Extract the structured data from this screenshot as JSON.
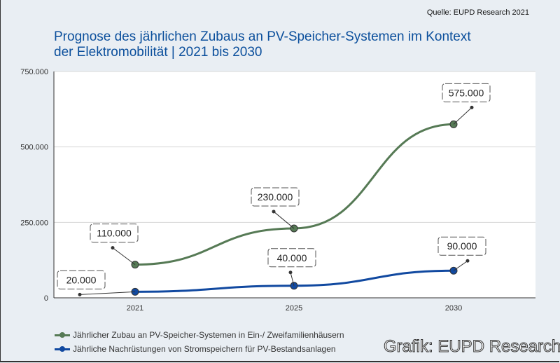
{
  "source": "Quelle: EUPD Research 2021",
  "watermark": "Grafik: EUPD Research",
  "chart_data": {
    "type": "line",
    "title": "Prognose des jährlichen Zubaus an PV-Speicher-Systemen im Kontext der Elektromobilität  | 2021 bis 2030",
    "title_lines": [
      "Prognose des jährlichen Zubaus an PV-Speicher-Systemen im Kontext",
      "der Elektromobilität  | 2021 bis 2030"
    ],
    "categories": [
      "2021",
      "2025",
      "2030"
    ],
    "ylim": [
      0,
      750000
    ],
    "yticks": [
      0,
      250000,
      500000,
      750000
    ],
    "ytick_labels": [
      "0",
      "250.000",
      "500.000",
      "750.000"
    ],
    "grid": true,
    "legend_position": "bottom-left",
    "series": [
      {
        "name": "Jährlicher Zubau an PV-Speicher-Systemen in Ein-/ Zweifamilienhäusern",
        "values": [
          110000,
          230000,
          575000
        ],
        "labels": [
          "110.000",
          "230.000",
          "575.000"
        ],
        "color": "#567a55"
      },
      {
        "name": "Jährliche Nachrüstungen von Stromspeichern für PV-Bestandsanlagen",
        "values": [
          20000,
          40000,
          90000
        ],
        "labels": [
          "20.000",
          "40.000",
          "90.000"
        ],
        "color": "#1149a0"
      }
    ]
  }
}
